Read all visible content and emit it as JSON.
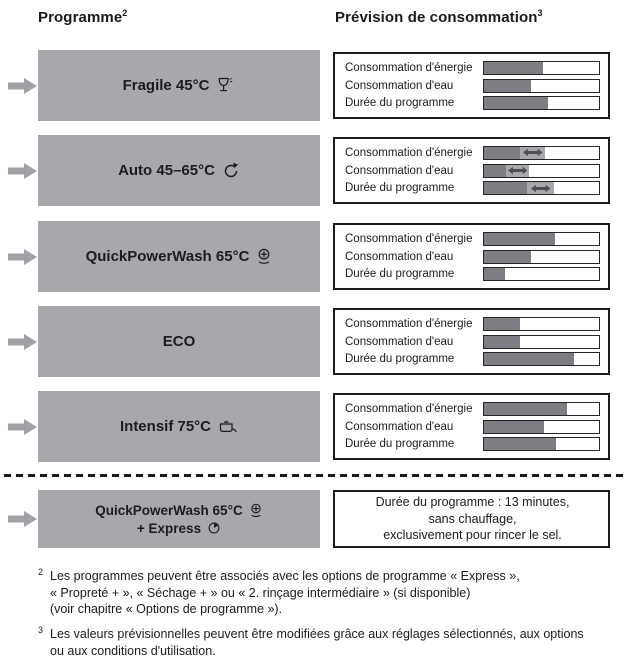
{
  "header": {
    "program_title": "Programme",
    "program_sup": "2",
    "consumption_title": "Prévision de consommation",
    "consumption_sup": "3"
  },
  "consumption_labels": [
    "Consommation d'énergie",
    "Consommation d'eau",
    "Durée du programme"
  ],
  "colors": {
    "box_gray": "#a8a8ac",
    "bar_fill": "#7d7d84",
    "range_segment": "#a8a8ac",
    "range_arrow": "#4e4e55",
    "border": "#1c1c1e",
    "pointer_arrow": "#a0a0a6"
  },
  "icons": {
    "row_pointer": "pointer-arrow-icon",
    "fragile": "wine-glass-icon",
    "auto": "auto-cycle-icon",
    "quickpowerwash": "quick-clock-icon",
    "intensif": "pot-icon",
    "express": "express-timer-icon",
    "variable": "double-arrow-icon"
  },
  "rows": [
    {
      "name": "Fragile 45°C",
      "icon": "wine-glass",
      "bars": [
        {
          "fill": 51
        },
        {
          "fill": 41
        },
        {
          "fill": 56
        }
      ]
    },
    {
      "name": "Auto 45–65°C",
      "icon": "auto-cycle",
      "bars": [
        {
          "fill": 31,
          "range_to": 53
        },
        {
          "fill": 19,
          "range_to": 39
        },
        {
          "fill": 37,
          "range_to": 61
        }
      ]
    },
    {
      "name": "QuickPowerWash 65°C",
      "icon": "quick-clock",
      "bars": [
        {
          "fill": 62
        },
        {
          "fill": 41
        },
        {
          "fill": 18
        }
      ]
    },
    {
      "name": "ECO",
      "icon": null,
      "bars": [
        {
          "fill": 31
        },
        {
          "fill": 31
        },
        {
          "fill": 78
        }
      ]
    },
    {
      "name": "Intensif 75°C",
      "icon": "pot",
      "bars": [
        {
          "fill": 72
        },
        {
          "fill": 52
        },
        {
          "fill": 63
        }
      ]
    }
  ],
  "special_row": {
    "name_line1": "QuickPowerWash 65°C",
    "name_line2": "+ Express",
    "note": "Durée du programme : 13 minutes,\nsans chauffage,\nexclusivement pour rincer le sel."
  },
  "footnotes": [
    {
      "sup": "2",
      "text": "Les programmes peuvent être associés avec les options de programme « Express »,\n« Propreté + », « Séchage + » ou « 2. rinçage intermédiaire » (si disponible)\n(voir chapitre « Options de programme »)."
    },
    {
      "sup": "3",
      "text": "Les valeurs prévisionnelles peuvent être modifiées grâce aux réglages sélectionnés, aux options\nou aux conditions d'utilisation."
    }
  ]
}
